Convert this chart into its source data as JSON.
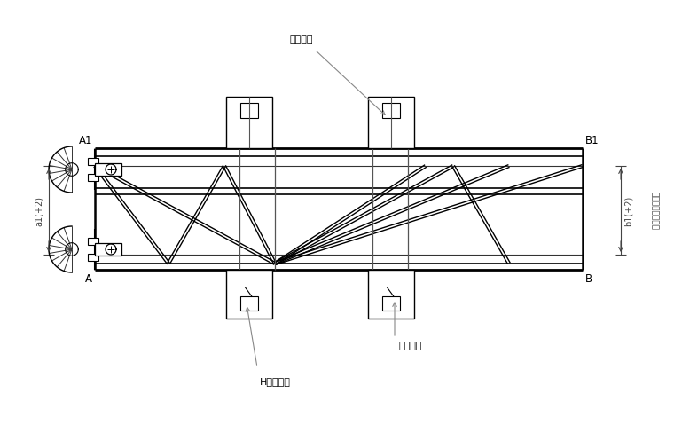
{
  "bg_color": "#ffffff",
  "line_color": "#000000",
  "dim_color": "#444444",
  "annotation_color": "#666666",
  "fig_width": 7.6,
  "fig_height": 4.89,
  "labels": {
    "A1": "A1",
    "A": "A",
    "B1": "B1",
    "B": "B",
    "top_label": "固定挡块",
    "bottom_label1": "固定橔子",
    "bottom_label2": "H型钐垃件",
    "left_dim": "a1(+2)",
    "right_dim": "b1(+2)",
    "right_annotation": "保证钐筌中心距离"
  }
}
